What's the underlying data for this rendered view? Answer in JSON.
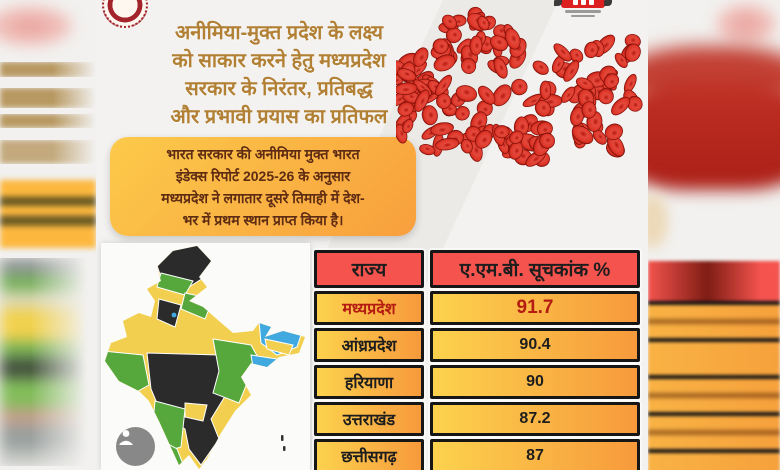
{
  "poster": {
    "title_lines": [
      "अनीमिया-मुक्त प्रदेश के लक्ष्य",
      "को साकार करने हेतु मध्यप्रदेश",
      "सरकार के  निरंतर, प्रतिबद्ध",
      "और प्रभावी प्रयास  का प्रतिफल"
    ],
    "info_lines": [
      "भारत सरकार की अनीमिया मुक्त भारत",
      "इंडेक्स रिपोर्ट 2025-26 के अनुसार",
      "मध्यप्रदेश ने लगातार दूसरे तिमाही में देश-",
      "भर में प्रथम स्थान प्राप्त किया है।"
    ]
  },
  "table": {
    "headers": [
      "राज्य",
      "ए.एम.बी. सूचकांक %"
    ],
    "rows": [
      {
        "state": "मध्यप्रदेश",
        "value": "91.7"
      },
      {
        "state": "आंध्रप्रदेश",
        "value": "90.4"
      },
      {
        "state": "हरियाणा",
        "value": "90"
      },
      {
        "state": "उत्तराखंड",
        "value": "87.2"
      },
      {
        "state": "छत्तीसगढ़",
        "value": "87"
      }
    ]
  },
  "chart_data": {
    "type": "table",
    "title": "ए.एम.बी. सूचकांक %",
    "columns": [
      "राज्य",
      "ए.एम.बी. सूचकांक %"
    ],
    "categories": [
      "मध्यप्रदेश",
      "आंध्रप्रदेश",
      "हरियाणा",
      "उत्तराखंड",
      "छत्तीसगढ़"
    ],
    "values": [
      91.7,
      90.4,
      90,
      87.2,
      87
    ],
    "highlight_row": "मध्यप्रदेश"
  },
  "icons": {
    "person_badge": "person-icon",
    "emblem": "government-seal-icon",
    "top_right": "health-mission-logo"
  },
  "colors": {
    "header_red": "#f4534e",
    "row_gradient_start": "#fcd24d",
    "row_gradient_end": "#f79a3c",
    "title_gold": "#b28034",
    "info_box_text": "#5e2b13",
    "highlight_text": "#b41c12",
    "cell_border": "#161616",
    "blood_cell_red": "#c62b20",
    "map_yellow": "#f2cf4e",
    "map_green": "#56a73c",
    "map_black": "#2b2b2b",
    "map_blue": "#3fa9e0"
  }
}
